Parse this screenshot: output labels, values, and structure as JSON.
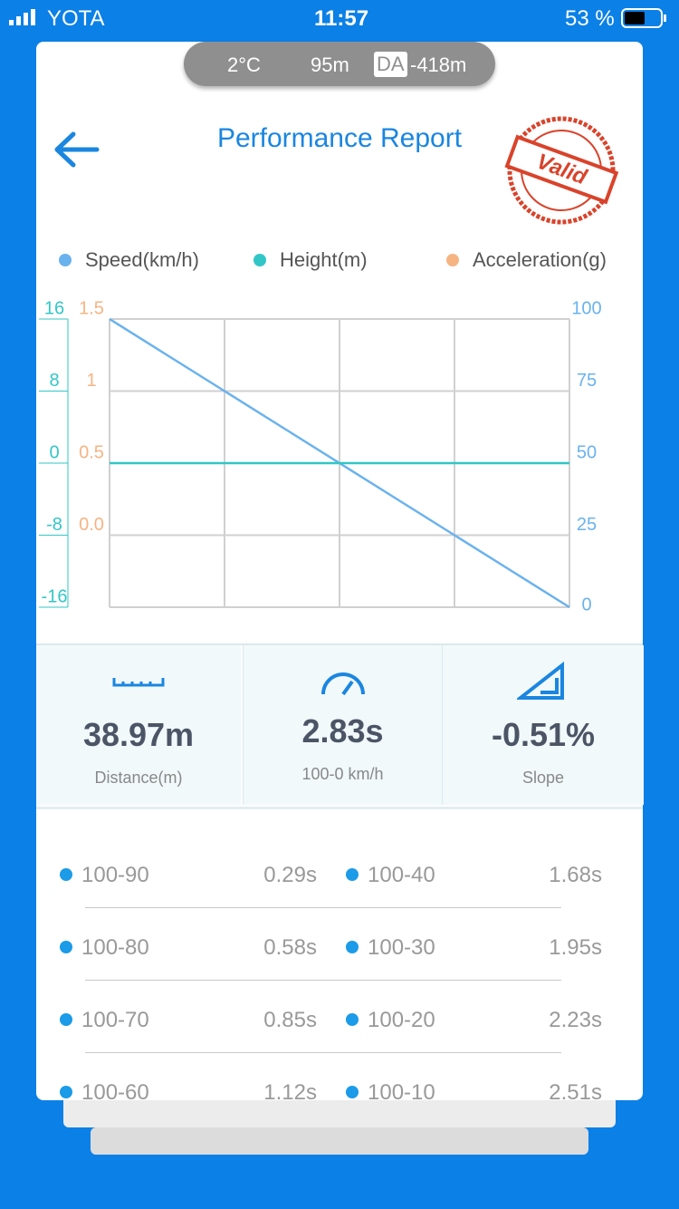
{
  "status_bar": {
    "carrier": "YOTA",
    "time": "11:57",
    "battery": "53 %"
  },
  "conditions": {
    "temperature": "2°C",
    "altitude": "95m",
    "da_badge": "DA",
    "density_altitude": "-418m"
  },
  "header": {
    "title": "Performance Report",
    "stamp": "Valid"
  },
  "chart_data": {
    "type": "line",
    "series": [
      {
        "name": "Speed(km/h)",
        "color": "#6ab2ee",
        "axis": "y2",
        "values": [
          100,
          87.5,
          75,
          62.5,
          50,
          37.5,
          25,
          12.5,
          0
        ]
      },
      {
        "name": "Height(m)",
        "color": "#33c6c6",
        "axis": "y",
        "values": [
          0,
          0,
          0,
          0,
          0,
          0,
          0,
          0,
          0
        ]
      },
      {
        "name": "Acceleration(g)",
        "color": "#f6b483",
        "axis": "y3",
        "values": [
          null,
          null,
          null,
          null,
          null,
          null,
          null,
          null,
          null
        ]
      }
    ],
    "ylim": [
      -16,
      16
    ],
    "yticks": [
      16,
      8,
      0,
      -8,
      -16
    ],
    "y3lim": [
      -0.5,
      1.5
    ],
    "y3ticks": [
      1.5,
      1,
      0.5,
      {
        "value": 0,
        "label": "0.0"
      }
    ],
    "y2lim": [
      0,
      100
    ],
    "y2ticks": [
      100,
      75,
      50,
      25,
      0
    ],
    "grid": true
  },
  "stats": [
    {
      "value": "38.97m",
      "label": "Distance(m)"
    },
    {
      "value": "2.83s",
      "label": "100-0 km/h"
    },
    {
      "value": "-0.51%",
      "label": "Slope"
    }
  ],
  "splits": [
    [
      "100-90",
      "0.29s",
      "100-40",
      "1.68s"
    ],
    [
      "100-80",
      "0.58s",
      "100-30",
      "1.95s"
    ],
    [
      "100-70",
      "0.85s",
      "100-20",
      "2.23s"
    ],
    [
      "100-60",
      "1.12s",
      "100-10",
      "2.51s"
    ]
  ]
}
